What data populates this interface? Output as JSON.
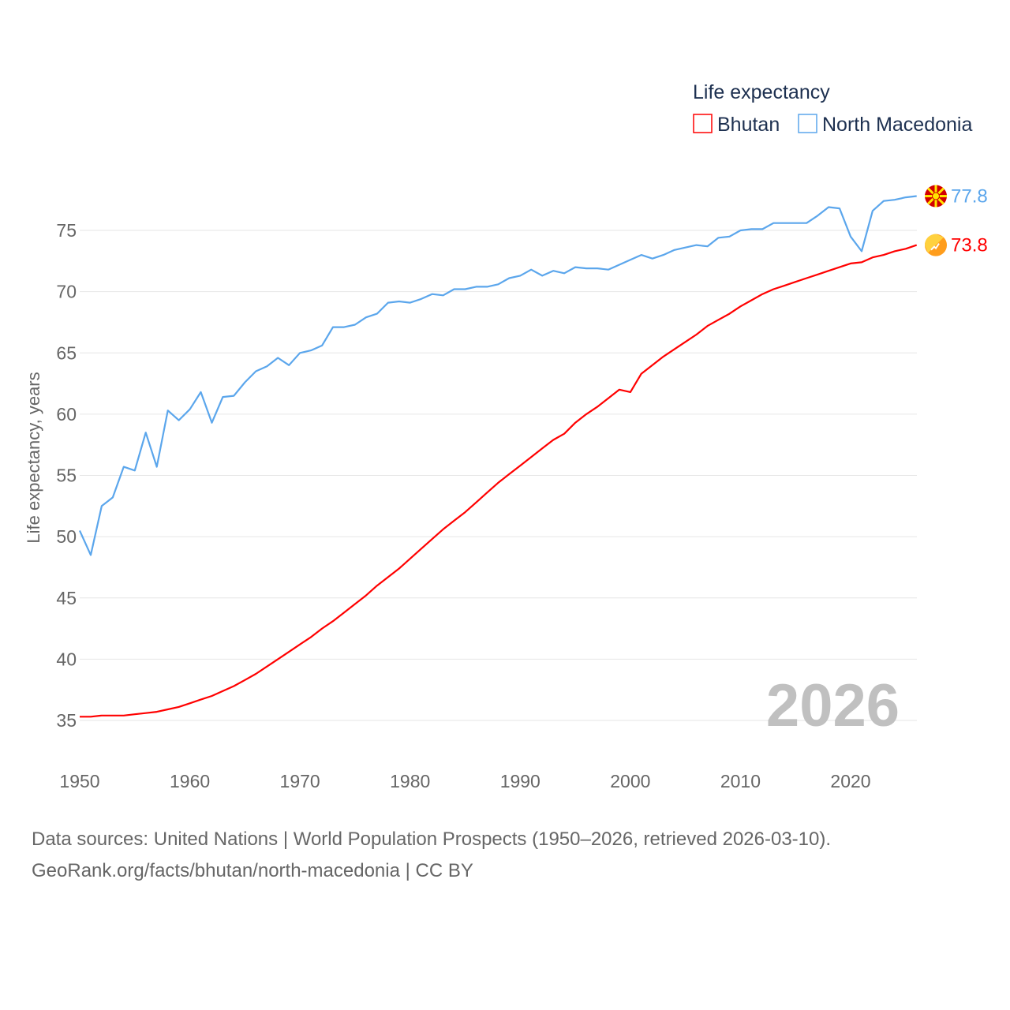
{
  "chart_data": {
    "type": "line",
    "title": "",
    "legend_title": "Life expectancy",
    "legend_position": "top-right",
    "ylabel": "Life expectancy, years",
    "xlabel": "",
    "xlim": [
      1950,
      2026
    ],
    "ylim": [
      32,
      79
    ],
    "x_ticks": [
      1950,
      1960,
      1970,
      1980,
      1990,
      2000,
      2010,
      2020
    ],
    "y_ticks": [
      35,
      40,
      45,
      50,
      55,
      60,
      65,
      70,
      75
    ],
    "grid": true,
    "year_watermark": "2026",
    "x": [
      1950,
      1951,
      1952,
      1953,
      1954,
      1955,
      1956,
      1957,
      1958,
      1959,
      1960,
      1961,
      1962,
      1963,
      1964,
      1965,
      1966,
      1967,
      1968,
      1969,
      1970,
      1971,
      1972,
      1973,
      1974,
      1975,
      1976,
      1977,
      1978,
      1979,
      1980,
      1981,
      1982,
      1983,
      1984,
      1985,
      1986,
      1987,
      1988,
      1989,
      1990,
      1991,
      1992,
      1993,
      1994,
      1995,
      1996,
      1997,
      1998,
      1999,
      2000,
      2001,
      2002,
      2003,
      2004,
      2005,
      2006,
      2007,
      2008,
      2009,
      2010,
      2011,
      2012,
      2013,
      2014,
      2015,
      2016,
      2017,
      2018,
      2019,
      2020,
      2021,
      2022,
      2023,
      2024,
      2025,
      2026
    ],
    "series": [
      {
        "name": "Bhutan",
        "color": "#ff0000",
        "end_label": "73.8",
        "flag": "bhutan-flag",
        "values": [
          35.3,
          35.3,
          35.4,
          35.4,
          35.4,
          35.5,
          35.6,
          35.7,
          35.9,
          36.1,
          36.4,
          36.7,
          37.0,
          37.4,
          37.8,
          38.3,
          38.8,
          39.4,
          40.0,
          40.6,
          41.2,
          41.8,
          42.5,
          43.1,
          43.8,
          44.5,
          45.2,
          46.0,
          46.7,
          47.4,
          48.2,
          49.0,
          49.8,
          50.6,
          51.3,
          52.0,
          52.8,
          53.6,
          54.4,
          55.1,
          55.8,
          56.5,
          57.2,
          57.9,
          58.4,
          59.3,
          60.0,
          60.6,
          61.3,
          62.0,
          61.8,
          63.3,
          64.0,
          64.7,
          65.3,
          65.9,
          66.5,
          67.2,
          67.7,
          68.2,
          68.8,
          69.3,
          69.8,
          70.2,
          70.5,
          70.8,
          71.1,
          71.4,
          71.7,
          72.0,
          72.3,
          72.4,
          72.8,
          73.0,
          73.3,
          73.5,
          73.8
        ]
      },
      {
        "name": "North Macedonia",
        "color": "#5ba6ec",
        "end_label": "77.8",
        "flag": "north-macedonia-flag",
        "values": [
          50.5,
          48.5,
          52.5,
          53.2,
          55.7,
          55.4,
          58.5,
          55.7,
          60.3,
          59.5,
          60.4,
          61.8,
          59.3,
          61.4,
          61.5,
          62.6,
          63.5,
          63.9,
          64.6,
          64.0,
          65.0,
          65.2,
          65.6,
          67.1,
          67.1,
          67.3,
          67.9,
          68.2,
          69.1,
          69.2,
          69.1,
          69.4,
          69.8,
          69.7,
          70.2,
          70.2,
          70.4,
          70.4,
          70.6,
          71.1,
          71.3,
          71.8,
          71.3,
          71.7,
          71.5,
          72.0,
          71.9,
          71.9,
          71.8,
          72.2,
          72.6,
          73.0,
          72.7,
          73.0,
          73.4,
          73.6,
          73.8,
          73.7,
          74.4,
          74.5,
          75.0,
          75.1,
          75.1,
          75.6,
          75.6,
          75.6,
          75.6,
          76.2,
          76.9,
          76.8,
          74.5,
          73.3,
          76.6,
          77.4,
          77.5,
          77.7,
          77.8
        ]
      }
    ]
  },
  "source": {
    "line1": "Data sources: United Nations | World Population Prospects (1950–2026, retrieved 2026-03-10).",
    "line2": "GeoRank.org/facts/bhutan/north-macedonia | CC BY"
  }
}
